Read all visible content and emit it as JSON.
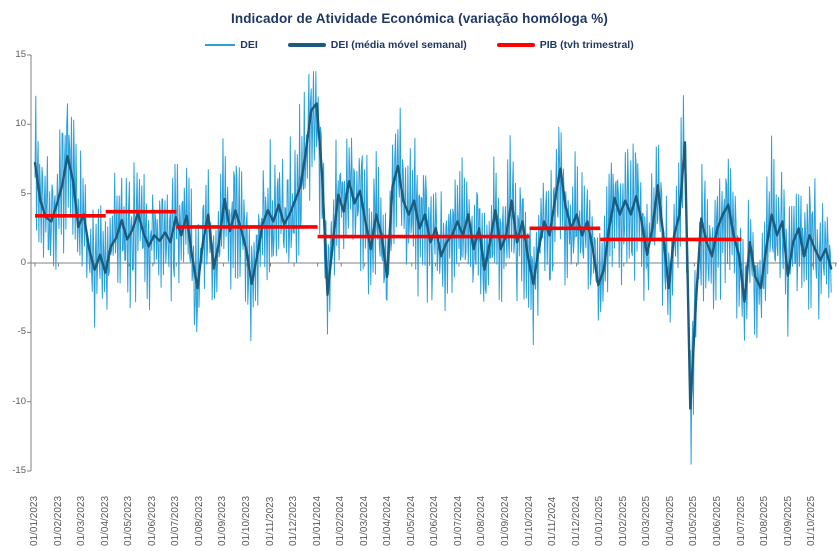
{
  "title": "Indicador de Atividade Económica (variação homóloga %)",
  "legend": {
    "items": [
      {
        "label": "DEI",
        "color": "#2AA0DB",
        "swatch": "thin-line"
      },
      {
        "label": "DEI (média móvel semanal)",
        "color": "#1D5B7C",
        "swatch": "thick-line"
      },
      {
        "label": "PIB (tvh trimestral)",
        "color": "#FF0000",
        "swatch": "thick-line"
      }
    ]
  },
  "chart_data": {
    "type": "line",
    "title": "Indicador de Atividade Económica (variação homóloga %)",
    "xlabel": "",
    "ylabel": "",
    "ylim": [
      -15,
      15
    ],
    "y_ticks": [
      15,
      10,
      5,
      0,
      -5,
      -10,
      -15
    ],
    "grid": "zero-axis-only",
    "legend_position": "top",
    "axis_color": "#808080",
    "tick_label_color": "#595959",
    "x_labels": [
      "01/01/2023",
      "01/02/2023",
      "01/03/2023",
      "01/04/2023",
      "01/05/2023",
      "01/06/2023",
      "01/07/2023",
      "01/08/2023",
      "01/09/2023",
      "01/10/2023",
      "01/11/2023",
      "01/12/2023",
      "01/01/2024",
      "01/02/2024",
      "01/03/2024",
      "01/04/2024",
      "01/05/2024",
      "01/06/2024",
      "01/07/2024",
      "01/08/2024",
      "01/09/2024",
      "01/10/2024",
      "01/11/2024",
      "01/12/2024",
      "01/01/2025",
      "01/02/2025",
      "01/03/2025",
      "01/04/2025",
      "01/05/2025",
      "01/06/2025",
      "01/07/2025",
      "01/08/2025",
      "01/09/2025",
      "01/10/2025"
    ],
    "series": [
      {
        "name": "DEI",
        "type": "daily",
        "color": "#2AA0DB",
        "start_date": "01/01/2023",
        "step_days": 1,
        "derivation": "daily values oscillate tightly around the weekly moving average; individual daily points are not resolvable in the source, envelope ≈ ±2 to ±7 around the weekly line, extremes clamped",
        "noise": {
          "seed": 7,
          "period_days": 3.1,
          "amp_min": 1.6,
          "amp_max": 4.4,
          "jitter": 2.4,
          "clamp": [
            -14.5,
            13.8
          ]
        }
      },
      {
        "name": "DEI (média móvel semanal)",
        "type": "weekly",
        "color": "#1D5B7C",
        "start_date": "01/01/2023",
        "step_days": 7,
        "values": [
          7.2,
          4.5,
          3.3,
          3.0,
          4.2,
          5.6,
          7.7,
          6.0,
          2.6,
          3.5,
          1.0,
          -0.5,
          0.6,
          -0.7,
          1.2,
          1.8,
          3.1,
          1.7,
          2.4,
          3.6,
          2.2,
          1.2,
          2.0,
          1.6,
          2.2,
          1.5,
          3.3,
          2.0,
          3.4,
          0.5,
          -1.8,
          1.5,
          3.5,
          -0.4,
          1.5,
          4.6,
          2.3,
          3.8,
          2.5,
          1.0,
          -1.5,
          0.5,
          2.8,
          3.8,
          3.0,
          4.2,
          2.8,
          3.5,
          4.5,
          5.5,
          8.0,
          11.0,
          11.5,
          6.5,
          -2.3,
          1.5,
          4.9,
          3.7,
          5.9,
          4.3,
          5.2,
          3.0,
          1.0,
          3.5,
          2.0,
          -1.0,
          5.5,
          7.0,
          4.5,
          3.5,
          4.5,
          2.5,
          3.5,
          1.5,
          2.5,
          0.5,
          1.5,
          2.0,
          3.0,
          2.0,
          3.5,
          1.0,
          2.5,
          -0.5,
          1.5,
          3.8,
          1.0,
          2.0,
          4.5,
          1.5,
          3.0,
          0.5,
          -1.5,
          1.0,
          3.0,
          2.0,
          4.5,
          6.8,
          4.0,
          2.5,
          3.5,
          2.0,
          3.0,
          1.0,
          -1.6,
          -0.5,
          2.5,
          4.7,
          3.5,
          4.5,
          3.5,
          4.8,
          3.0,
          0.6,
          2.5,
          5.6,
          2.0,
          -1.8,
          2.0,
          3.5,
          8.7,
          -10.5,
          -3.0,
          3.2,
          1.5,
          0.5,
          2.5,
          3.5,
          4.2,
          2.0,
          0.5,
          -2.8,
          1.5,
          -1.0,
          -1.8,
          1.0,
          3.5,
          2.0,
          3.0,
          -0.9,
          1.5,
          2.5,
          0.5,
          2.0,
          1.0,
          0.2,
          1.0,
          -0.4
        ]
      },
      {
        "name": "PIB (tvh trimestral)",
        "type": "step-segments",
        "color": "#FF0000",
        "segments": [
          {
            "from": "01/01/2023",
            "to": "01/04/2023",
            "value": 3.4
          },
          {
            "from": "01/04/2023",
            "to": "01/07/2023",
            "value": 3.7
          },
          {
            "from": "01/07/2023",
            "to": "01/01/2024",
            "value": 2.6
          },
          {
            "from": "01/01/2024",
            "to": "01/10/2024",
            "value": 1.9
          },
          {
            "from": "01/10/2024",
            "to": "01/01/2025",
            "value": 2.5
          },
          {
            "from": "01/01/2025",
            "to": "01/07/2025",
            "value": 1.7
          }
        ]
      }
    ]
  }
}
